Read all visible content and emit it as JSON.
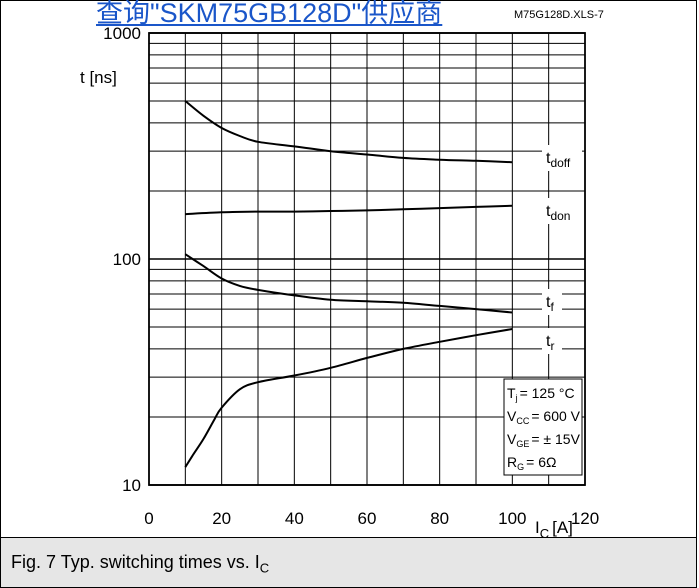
{
  "header": {
    "link_text": "查询\"SKM75GB128D\"供应商",
    "file_ref": "M75G128D.XLS-7"
  },
  "caption": {
    "text": "Fig. 7 Typ. switching times vs. I",
    "subscript": "C"
  },
  "conditions": {
    "tj": {
      "sym": "T",
      "sub": "j",
      "value": "= 125 °C"
    },
    "vcc": {
      "sym": "V",
      "sub": "CC",
      "value": "= 600 V"
    },
    "vge": {
      "sym": "V",
      "sub": "GE",
      "value": "= ± 15V"
    },
    "rg": {
      "sym": "R",
      "sub": "G",
      "value": "= 6Ω"
    }
  },
  "chart_data": {
    "type": "line",
    "xlabel": "I",
    "xlabel_sub": "C",
    "xlabel_unit": "[A]",
    "ylabel": "t [ns]",
    "xlim": [
      0,
      120
    ],
    "ylim": [
      10,
      1000
    ],
    "yscale": "log",
    "x_ticks": [
      "0",
      "20",
      "40",
      "60",
      "80",
      "100",
      "120"
    ],
    "y_ticks": [
      "10",
      "100",
      "1000"
    ],
    "grid": true,
    "series": [
      {
        "name": "t",
        "sub": "doff",
        "x": [
          10,
          15,
          20,
          25,
          30,
          40,
          50,
          60,
          70,
          80,
          90,
          100
        ],
        "y": [
          500,
          430,
          380,
          350,
          330,
          315,
          300,
          290,
          280,
          275,
          272,
          268
        ]
      },
      {
        "name": "t",
        "sub": "don",
        "x": [
          10,
          20,
          30,
          40,
          50,
          60,
          70,
          80,
          90,
          100
        ],
        "y": [
          158,
          161,
          162,
          162,
          163,
          164,
          166,
          168,
          170,
          172
        ]
      },
      {
        "name": "t",
        "sub": "f",
        "x": [
          10,
          15,
          20,
          25,
          30,
          40,
          50,
          60,
          70,
          80,
          90,
          100
        ],
        "y": [
          105,
          93,
          82,
          76,
          73,
          69,
          66,
          65,
          64,
          62,
          60,
          58
        ]
      },
      {
        "name": "t",
        "sub": "r",
        "x": [
          10,
          12,
          15,
          18,
          20,
          25,
          30,
          40,
          50,
          60,
          70,
          80,
          90,
          100
        ],
        "y": [
          12,
          13.5,
          16,
          19.5,
          22,
          26.5,
          28.5,
          30.5,
          33,
          36.5,
          40,
          43,
          46,
          49
        ]
      }
    ]
  }
}
